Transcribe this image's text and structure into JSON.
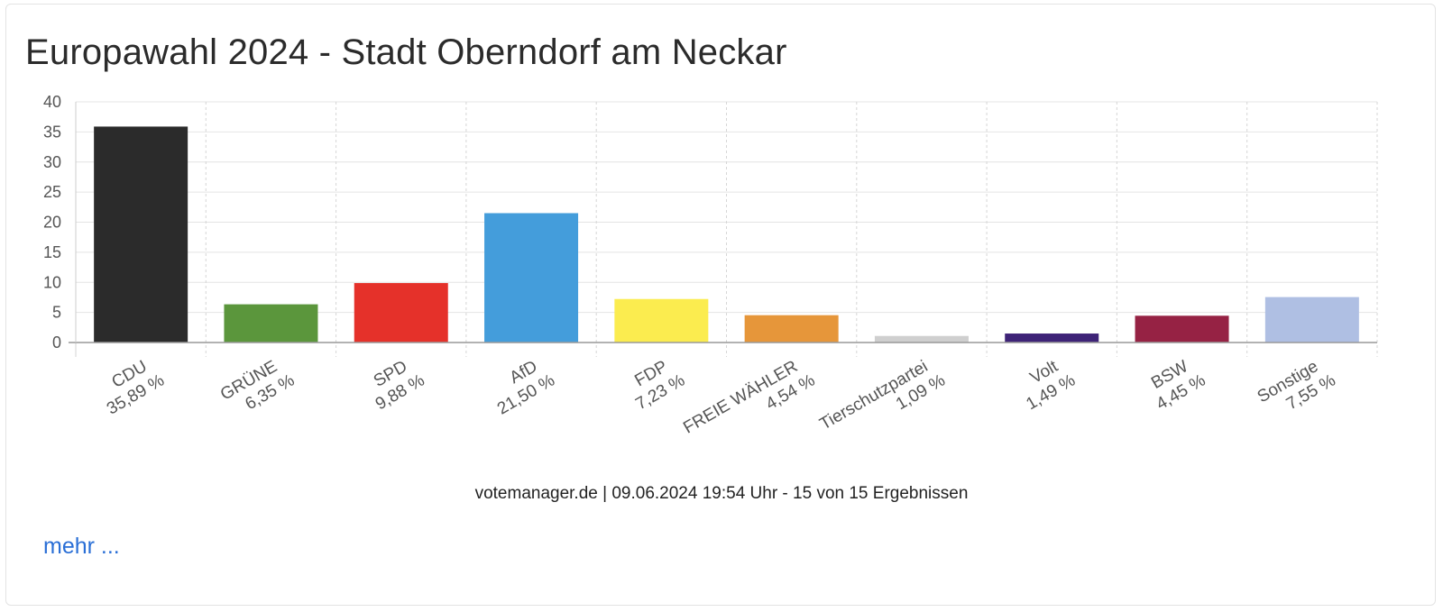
{
  "chart_data": {
    "type": "bar",
    "title": "Europawahl 2024 - Stadt Oberndorf am Neckar",
    "xlabel": "",
    "ylabel": "",
    "ylim": [
      0,
      40
    ],
    "yticks": [
      0,
      5,
      10,
      15,
      20,
      25,
      30,
      35,
      40
    ],
    "grid": true,
    "categories": [
      "CDU",
      "GRÜNE",
      "SPD",
      "AfD",
      "FDP",
      "FREIE WÄHLER",
      "Tierschutzpartei",
      "Volt",
      "BSW",
      "Sonstige"
    ],
    "value_labels": [
      "35,89 %",
      "6,35 %",
      "9,88 %",
      "21,50 %",
      "7,23 %",
      "4,54 %",
      "1,09 %",
      "1,49 %",
      "4,45 %",
      "7,55 %"
    ],
    "values": [
      35.89,
      6.35,
      9.88,
      21.5,
      7.23,
      4.54,
      1.09,
      1.49,
      4.45,
      7.55
    ],
    "colors": [
      "#2b2b2b",
      "#5b963c",
      "#e5312a",
      "#449ddb",
      "#fbec4f",
      "#e6963a",
      "#cfcfcf",
      "#3e2377",
      "#962244",
      "#afbfe3"
    ]
  },
  "footer": {
    "source_text": "votemanager.de | 09.06.2024 19:54 Uhr - 15 von 15 Ergebnissen"
  },
  "links": {
    "more_label": "mehr ..."
  }
}
